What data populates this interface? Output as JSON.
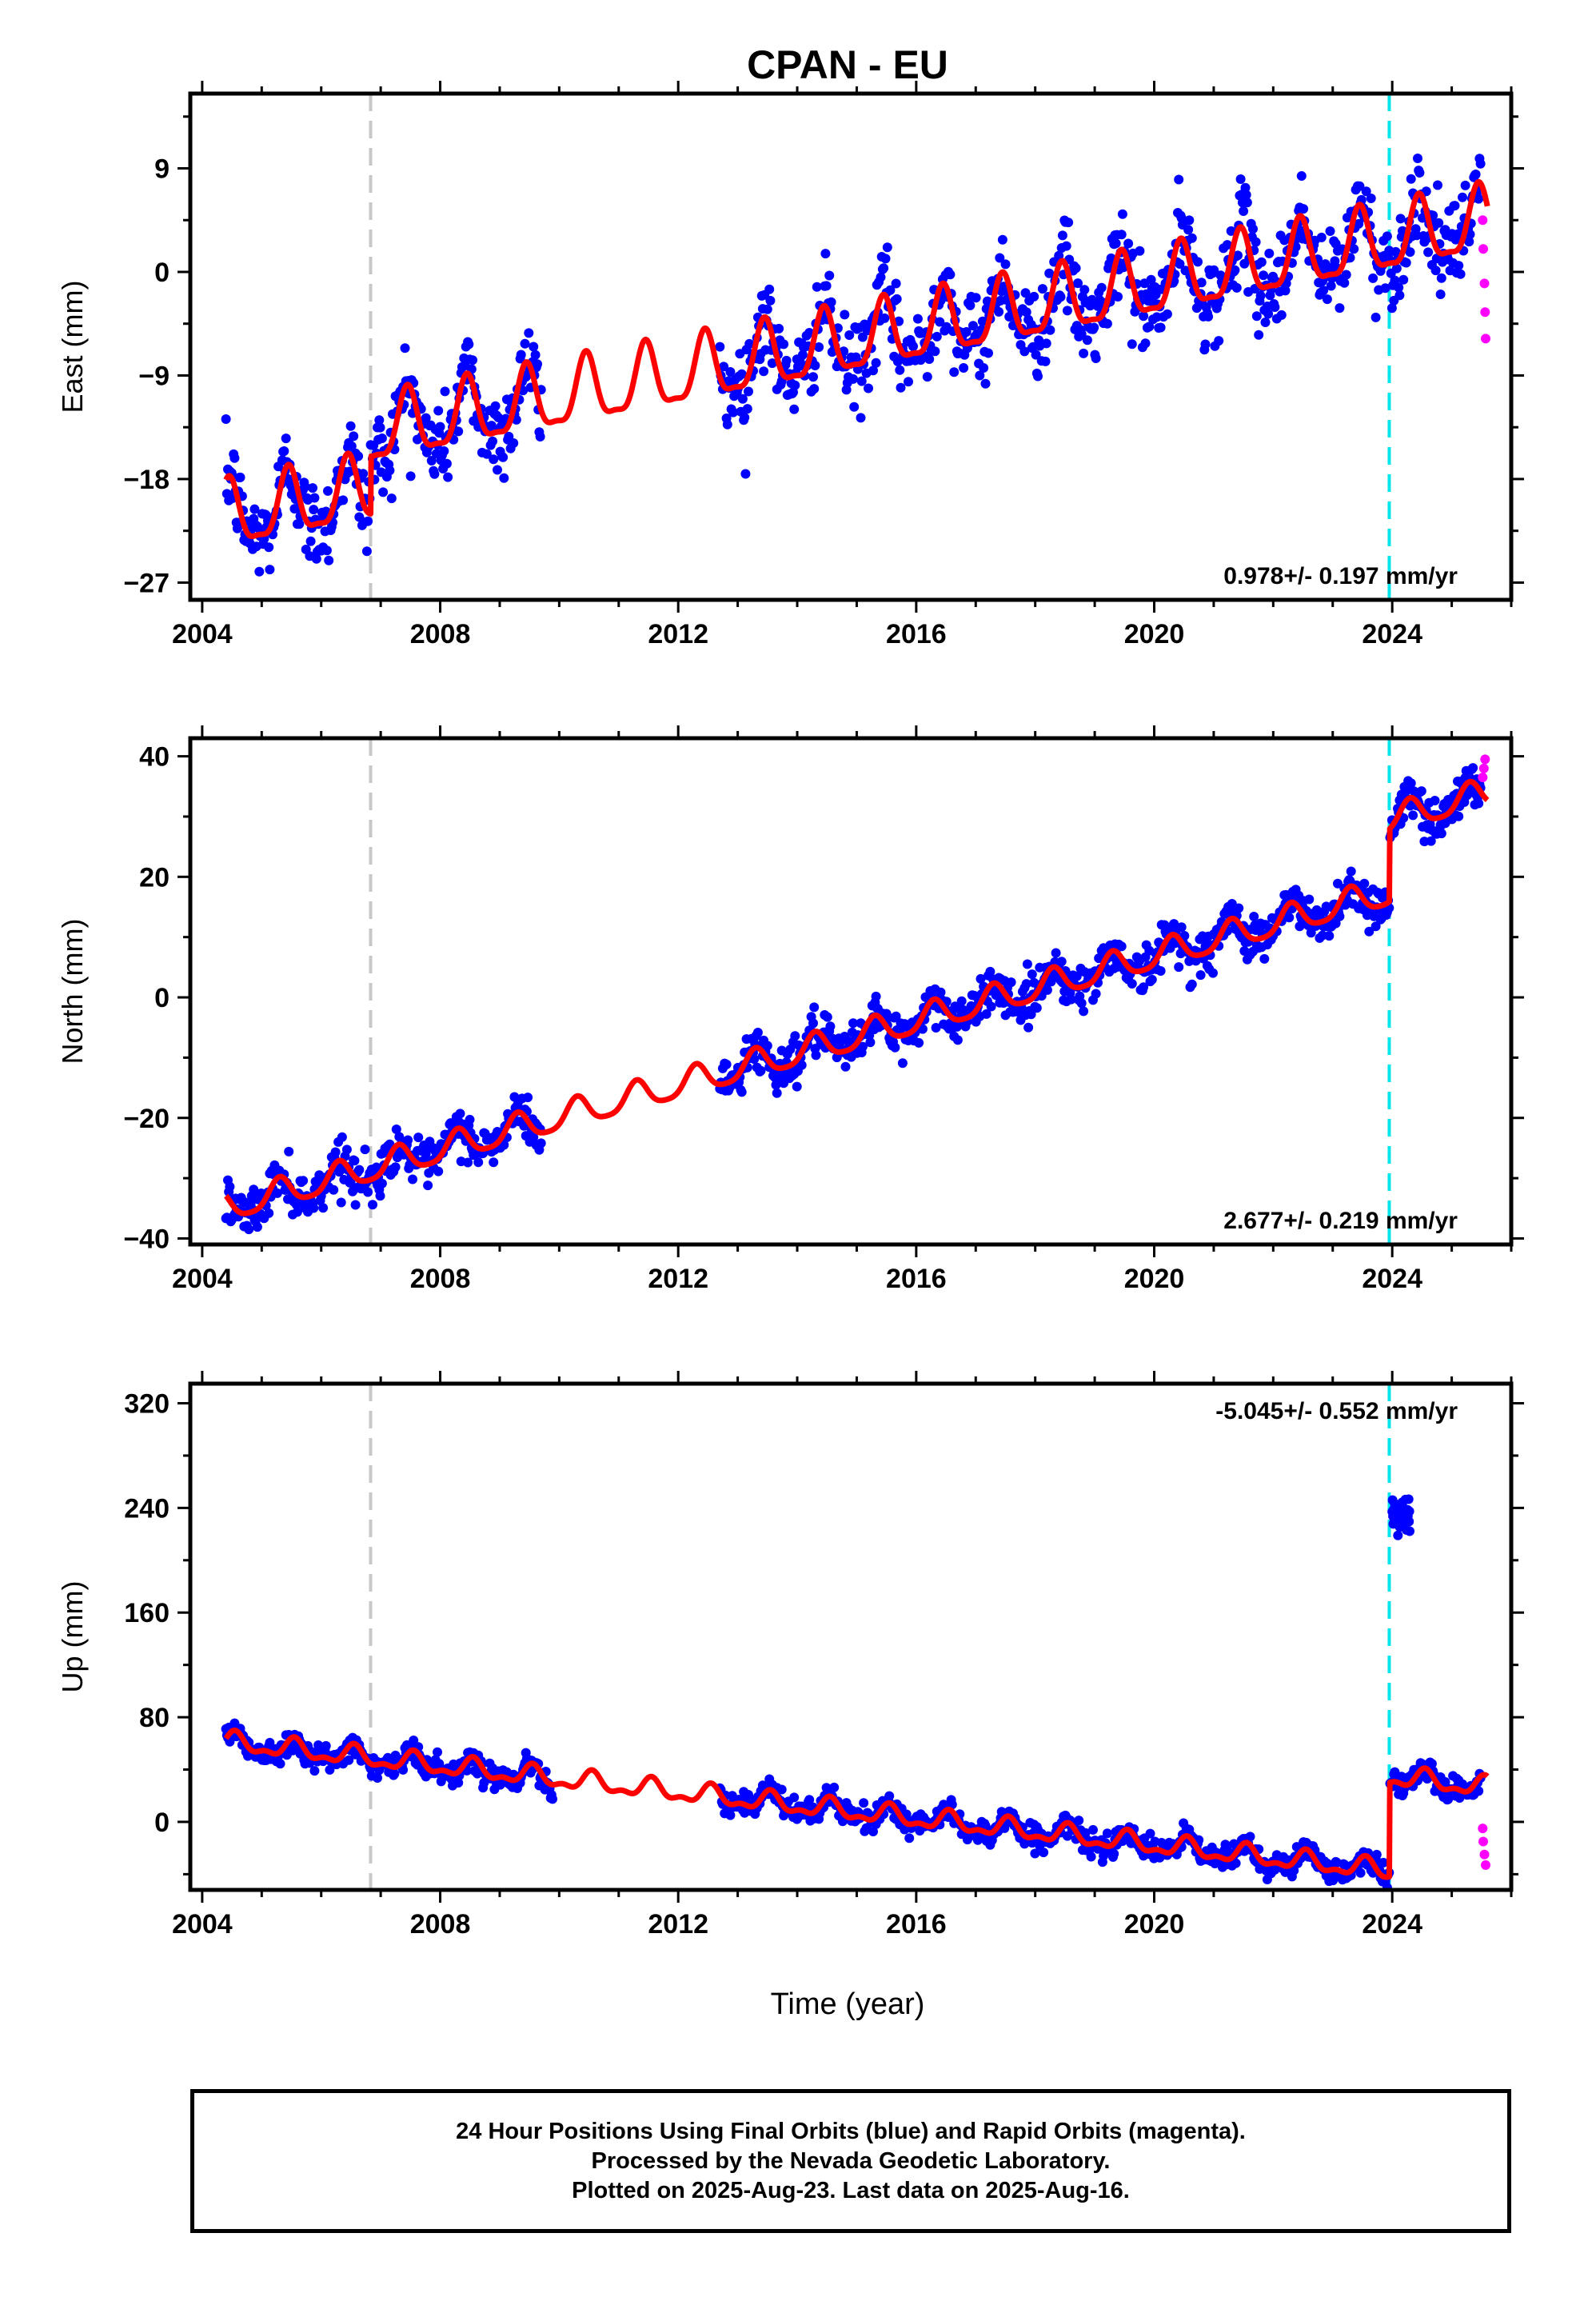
{
  "title": "CPAN - EU",
  "xlabel": "Time (year)",
  "footer": {
    "line1": "24 Hour Positions Using Final Orbits (blue) and Rapid Orbits (magenta).",
    "line2": "Processed by the Nevada Geodetic Laboratory.",
    "line3": "Plotted on 2025-Aug-23. Last data on 2025-Aug-16."
  },
  "colors": {
    "final_orbits": "#0000ff",
    "rapid_orbits": "#ff00ff",
    "model": "#ff0000",
    "equipment_change_line": "#c8c8c8",
    "earthquake_line": "#00e5ee"
  },
  "chart_data": [
    {
      "type": "scatter",
      "panel": "east",
      "ylabel": "East (mm)",
      "xlim": [
        2003.8,
        2026.0
      ],
      "ylim": [
        -28.5,
        15.5
      ],
      "xticks": [
        2004,
        2008,
        2012,
        2016,
        2020,
        2024
      ],
      "yticks": [
        -27,
        -18,
        -9,
        0,
        9
      ],
      "rate_label": "0.978+/- 0.197 mm/yr",
      "vertical_lines": [
        2006.83,
        2023.95
      ],
      "model": {
        "rate": 0.978,
        "intercept_at_2004": -21.8,
        "offsets": [
          [
            2006.83,
            5.0
          ]
        ],
        "amplitude": 2.8,
        "phase_peak": 0.45,
        "semiannual": 0.3
      },
      "gaps": [
        [
          2009.7,
          2012.7
        ]
      ],
      "rapid_points": [
        [
          2025.52,
          4.5
        ],
        [
          2025.53,
          2.0
        ],
        [
          2025.55,
          -1.0
        ],
        [
          2025.56,
          -3.5
        ],
        [
          2025.57,
          -5.8
        ]
      ],
      "series": [
        {
          "name": "Final Orbits",
          "segments": [
            [
              2004.4,
              2009.7
            ],
            [
              2012.7,
              2025.5
            ]
          ],
          "noise": 1.9
        },
        {
          "name": "Rapid Orbits",
          "segments": [
            [
              2025.5,
              2025.6
            ]
          ]
        }
      ]
    },
    {
      "type": "scatter",
      "panel": "north",
      "ylabel": "North (mm)",
      "xlim": [
        2003.8,
        2026.0
      ],
      "ylim": [
        -41,
        43
      ],
      "xticks": [
        2004,
        2008,
        2012,
        2016,
        2020,
        2024
      ],
      "yticks": [
        -40,
        -20,
        0,
        20,
        40
      ],
      "rate_label": "2.677+/- 0.219 mm/yr",
      "vertical_lines": [
        2006.83,
        2023.95
      ],
      "model": {
        "rate": 2.677,
        "intercept_at_2004": -36.0,
        "offsets": [
          [
            2023.95,
            12.0
          ]
        ],
        "amplitude": 2.3,
        "phase_peak": 0.3,
        "semiannual": 0.2
      },
      "gaps": [
        [
          2009.7,
          2012.7
        ]
      ],
      "rapid_points": [
        [
          2025.52,
          36.5
        ],
        [
          2025.54,
          38.0
        ],
        [
          2025.56,
          39.5
        ]
      ],
      "series": [
        {
          "name": "Final Orbits",
          "segments": [
            [
              2004.4,
              2009.7
            ],
            [
              2012.7,
              2025.5
            ]
          ],
          "noise": 1.8
        },
        {
          "name": "Rapid Orbits",
          "segments": [
            [
              2025.5,
              2025.6
            ]
          ]
        }
      ]
    },
    {
      "type": "scatter",
      "panel": "up",
      "ylabel": "Up (mm)",
      "xlim": [
        2003.8,
        2026.0
      ],
      "ylim": [
        -52,
        335
      ],
      "xticks": [
        2004,
        2008,
        2012,
        2016,
        2020,
        2024
      ],
      "yticks": [
        0,
        80,
        160,
        240,
        320
      ],
      "rate_label": "-5.045+/- 0.552 mm/yr",
      "vertical_lines": [
        2006.83,
        2023.95
      ],
      "model": {
        "rate": -5.045,
        "intercept_at_2004": 63.0,
        "offsets": [
          [
            2023.95,
            72.0
          ]
        ],
        "amplitude": 6.5,
        "phase_peak": 0.55,
        "semiannual": 0.5
      },
      "gaps": [
        [
          2009.9,
          2012.7
        ]
      ],
      "outlier_cluster": {
        "x": [
          2024.0,
          2024.3
        ],
        "y_center": 234,
        "spread": 5
      },
      "rapid_points": [
        [
          2025.52,
          -5
        ],
        [
          2025.53,
          -15
        ],
        [
          2025.55,
          -25
        ],
        [
          2025.57,
          -33
        ]
      ],
      "series": [
        {
          "name": "Final Orbits",
          "segments": [
            [
              2004.4,
              2009.9
            ],
            [
              2012.7,
              2025.5
            ]
          ],
          "noise": 4.5
        },
        {
          "name": "Rapid Orbits",
          "segments": [
            [
              2025.5,
              2025.6
            ]
          ]
        }
      ]
    }
  ]
}
